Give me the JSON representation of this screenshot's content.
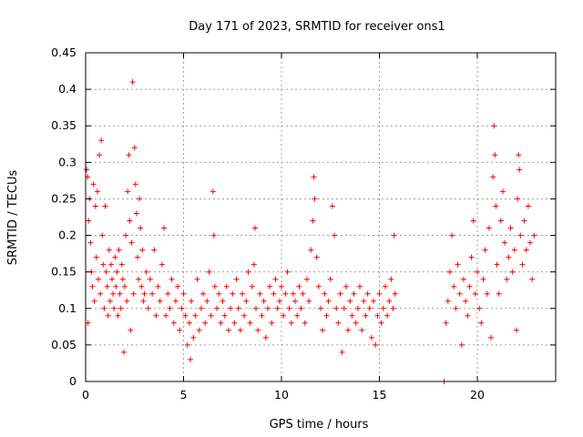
{
  "chart_data": {
    "type": "scatter",
    "title": "Day 171 of 2023, SRMTID for receiver ons1",
    "xlabel": "GPS time / hours",
    "ylabel": "SRMTID / TECUs",
    "xlim": [
      0,
      24
    ],
    "ylim": [
      0,
      0.45
    ],
    "xticks": [
      0,
      5,
      10,
      15,
      20
    ],
    "xtick_labels": [
      "0",
      "5",
      "10",
      "15",
      "20"
    ],
    "yticks": [
      0,
      0.05,
      0.1,
      0.15,
      0.2,
      0.25,
      0.3,
      0.35,
      0.4,
      0.45
    ],
    "ytick_labels": [
      "0",
      "0.05",
      "0.1",
      "0.15",
      "0.2",
      "0.25",
      "0.3",
      "0.35",
      "0.4",
      "0.45"
    ],
    "grid": true,
    "marker": "+",
    "color": "#ff0000",
    "series": [
      {
        "name": "SRMTID",
        "points": [
          [
            0.05,
            0.29
          ],
          [
            0.1,
            0.28
          ],
          [
            0.12,
            0.08
          ],
          [
            0.15,
            0.22
          ],
          [
            0.2,
            0.25
          ],
          [
            0.25,
            0.19
          ],
          [
            0.3,
            0.15
          ],
          [
            0.35,
            0.13
          ],
          [
            0.4,
            0.27
          ],
          [
            0.45,
            0.11
          ],
          [
            0.5,
            0.24
          ],
          [
            0.55,
            0.17
          ],
          [
            0.6,
            0.26
          ],
          [
            0.65,
            0.14
          ],
          [
            0.7,
            0.31
          ],
          [
            0.75,
            0.12
          ],
          [
            0.8,
            0.33
          ],
          [
            0.85,
            0.2
          ],
          [
            0.9,
            0.16
          ],
          [
            0.95,
            0.1
          ],
          [
            1.0,
            0.24
          ],
          [
            1.05,
            0.15
          ],
          [
            1.1,
            0.13
          ],
          [
            1.15,
            0.09
          ],
          [
            1.2,
            0.18
          ],
          [
            1.25,
            0.11
          ],
          [
            1.3,
            0.16
          ],
          [
            1.35,
            0.14
          ],
          [
            1.4,
            0.12
          ],
          [
            1.45,
            0.1
          ],
          [
            1.5,
            0.17
          ],
          [
            1.55,
            0.13
          ],
          [
            1.6,
            0.15
          ],
          [
            1.65,
            0.09
          ],
          [
            1.7,
            0.18
          ],
          [
            1.75,
            0.12
          ],
          [
            1.8,
            0.1
          ],
          [
            1.85,
            0.16
          ],
          [
            1.9,
            0.14
          ],
          [
            1.95,
            0.04
          ],
          [
            2.0,
            0.13
          ],
          [
            2.05,
            0.2
          ],
          [
            2.1,
            0.11
          ],
          [
            2.15,
            0.26
          ],
          [
            2.2,
            0.31
          ],
          [
            2.25,
            0.22
          ],
          [
            2.3,
            0.07
          ],
          [
            2.35,
            0.19
          ],
          [
            2.4,
            0.41
          ],
          [
            2.45,
            0.12
          ],
          [
            2.5,
            0.32
          ],
          [
            2.55,
            0.27
          ],
          [
            2.6,
            0.23
          ],
          [
            2.65,
            0.17
          ],
          [
            2.7,
            0.14
          ],
          [
            2.75,
            0.25
          ],
          [
            2.8,
            0.21
          ],
          [
            2.85,
            0.13
          ],
          [
            2.9,
            0.18
          ],
          [
            2.95,
            0.11
          ],
          [
            3.0,
            0.12
          ],
          [
            3.1,
            0.15
          ],
          [
            3.2,
            0.1
          ],
          [
            3.3,
            0.14
          ],
          [
            3.4,
            0.12
          ],
          [
            3.5,
            0.18
          ],
          [
            3.6,
            0.09
          ],
          [
            3.7,
            0.13
          ],
          [
            3.8,
            0.11
          ],
          [
            3.9,
            0.16
          ],
          [
            4.0,
            0.21
          ],
          [
            4.1,
            0.09
          ],
          [
            4.2,
            0.12
          ],
          [
            4.3,
            0.1
          ],
          [
            4.4,
            0.14
          ],
          [
            4.5,
            0.08
          ],
          [
            4.6,
            0.11
          ],
          [
            4.7,
            0.13
          ],
          [
            4.8,
            0.07
          ],
          [
            4.9,
            0.1
          ],
          [
            5.0,
            0.12
          ],
          [
            5.1,
            0.09
          ],
          [
            5.2,
            0.05
          ],
          [
            5.3,
            0.08
          ],
          [
            5.35,
            0.03
          ],
          [
            5.4,
            0.11
          ],
          [
            5.5,
            0.06
          ],
          [
            5.6,
            0.09
          ],
          [
            5.7,
            0.14
          ],
          [
            5.8,
            0.07
          ],
          [
            5.9,
            0.1
          ],
          [
            6.0,
            0.12
          ],
          [
            6.1,
            0.08
          ],
          [
            6.2,
            0.11
          ],
          [
            6.3,
            0.15
          ],
          [
            6.4,
            0.09
          ],
          [
            6.5,
            0.26
          ],
          [
            6.55,
            0.2
          ],
          [
            6.6,
            0.13
          ],
          [
            6.7,
            0.1
          ],
          [
            6.8,
            0.12
          ],
          [
            6.9,
            0.08
          ],
          [
            7.0,
            0.11
          ],
          [
            7.1,
            0.09
          ],
          [
            7.2,
            0.13
          ],
          [
            7.3,
            0.07
          ],
          [
            7.4,
            0.1
          ],
          [
            7.5,
            0.12
          ],
          [
            7.6,
            0.08
          ],
          [
            7.7,
            0.14
          ],
          [
            7.8,
            0.1
          ],
          [
            7.9,
            0.07
          ],
          [
            8.0,
            0.12
          ],
          [
            8.1,
            0.09
          ],
          [
            8.2,
            0.11
          ],
          [
            8.3,
            0.15
          ],
          [
            8.4,
            0.08
          ],
          [
            8.5,
            0.13
          ],
          [
            8.6,
            0.16
          ],
          [
            8.65,
            0.21
          ],
          [
            8.7,
            0.1
          ],
          [
            8.8,
            0.07
          ],
          [
            8.9,
            0.12
          ],
          [
            9.0,
            0.09
          ],
          [
            9.1,
            0.11
          ],
          [
            9.2,
            0.06
          ],
          [
            9.3,
            0.1
          ],
          [
            9.4,
            0.13
          ],
          [
            9.5,
            0.08
          ],
          [
            9.6,
            0.12
          ],
          [
            9.7,
            0.14
          ],
          [
            9.8,
            0.1
          ],
          [
            9.9,
            0.11
          ],
          [
            10.0,
            0.13
          ],
          [
            10.1,
            0.09
          ],
          [
            10.2,
            0.12
          ],
          [
            10.3,
            0.15
          ],
          [
            10.4,
            0.1
          ],
          [
            10.5,
            0.08
          ],
          [
            10.6,
            0.12
          ],
          [
            10.7,
            0.11
          ],
          [
            10.8,
            0.09
          ],
          [
            10.9,
            0.13
          ],
          [
            11.0,
            0.1
          ],
          [
            11.1,
            0.12
          ],
          [
            11.2,
            0.08
          ],
          [
            11.3,
            0.14
          ],
          [
            11.4,
            0.11
          ],
          [
            11.5,
            0.18
          ],
          [
            11.6,
            0.22
          ],
          [
            11.65,
            0.28
          ],
          [
            11.7,
            0.25
          ],
          [
            11.8,
            0.17
          ],
          [
            11.9,
            0.13
          ],
          [
            12.0,
            0.1
          ],
          [
            12.1,
            0.07
          ],
          [
            12.2,
            0.12
          ],
          [
            12.3,
            0.09
          ],
          [
            12.4,
            0.11
          ],
          [
            12.5,
            0.14
          ],
          [
            12.6,
            0.24
          ],
          [
            12.7,
            0.2
          ],
          [
            12.8,
            0.1
          ],
          [
            12.9,
            0.08
          ],
          [
            13.0,
            0.12
          ],
          [
            13.1,
            0.04
          ],
          [
            13.2,
            0.1
          ],
          [
            13.3,
            0.13
          ],
          [
            13.4,
            0.07
          ],
          [
            13.5,
            0.11
          ],
          [
            13.6,
            0.09
          ],
          [
            13.7,
            0.12
          ],
          [
            13.8,
            0.08
          ],
          [
            13.9,
            0.1
          ],
          [
            14.0,
            0.13
          ],
          [
            14.1,
            0.07
          ],
          [
            14.2,
            0.11
          ],
          [
            14.3,
            0.09
          ],
          [
            14.4,
            0.12
          ],
          [
            14.5,
            0.1
          ],
          [
            14.6,
            0.06
          ],
          [
            14.7,
            0.11
          ],
          [
            14.8,
            0.05
          ],
          [
            14.9,
            0.09
          ],
          [
            15.0,
            0.12
          ],
          [
            15.1,
            0.08
          ],
          [
            15.2,
            0.1
          ],
          [
            15.3,
            0.13
          ],
          [
            15.4,
            0.09
          ],
          [
            15.5,
            0.11
          ],
          [
            15.6,
            0.14
          ],
          [
            15.7,
            0.1
          ],
          [
            15.75,
            0.2
          ],
          [
            15.8,
            0.12
          ],
          [
            18.3,
            0.0
          ],
          [
            18.4,
            0.08
          ],
          [
            18.5,
            0.11
          ],
          [
            18.6,
            0.15
          ],
          [
            18.7,
            0.2
          ],
          [
            18.8,
            0.13
          ],
          [
            18.9,
            0.1
          ],
          [
            19.0,
            0.16
          ],
          [
            19.1,
            0.12
          ],
          [
            19.2,
            0.05
          ],
          [
            19.3,
            0.14
          ],
          [
            19.4,
            0.11
          ],
          [
            19.5,
            0.09
          ],
          [
            19.6,
            0.13
          ],
          [
            19.7,
            0.17
          ],
          [
            19.8,
            0.22
          ],
          [
            19.9,
            0.12
          ],
          [
            20.0,
            0.15
          ],
          [
            20.1,
            0.1
          ],
          [
            20.2,
            0.08
          ],
          [
            20.3,
            0.14
          ],
          [
            20.4,
            0.18
          ],
          [
            20.5,
            0.12
          ],
          [
            20.6,
            0.21
          ],
          [
            20.7,
            0.06
          ],
          [
            20.8,
            0.28
          ],
          [
            20.85,
            0.35
          ],
          [
            20.9,
            0.31
          ],
          [
            20.95,
            0.24
          ],
          [
            21.0,
            0.16
          ],
          [
            21.1,
            0.12
          ],
          [
            21.2,
            0.22
          ],
          [
            21.3,
            0.26
          ],
          [
            21.4,
            0.19
          ],
          [
            21.5,
            0.14
          ],
          [
            21.6,
            0.17
          ],
          [
            21.7,
            0.21
          ],
          [
            21.8,
            0.15
          ],
          [
            21.9,
            0.18
          ],
          [
            22.0,
            0.07
          ],
          [
            22.05,
            0.25
          ],
          [
            22.1,
            0.31
          ],
          [
            22.15,
            0.29
          ],
          [
            22.2,
            0.2
          ],
          [
            22.3,
            0.16
          ],
          [
            22.4,
            0.22
          ],
          [
            22.5,
            0.18
          ],
          [
            22.6,
            0.24
          ],
          [
            22.7,
            0.19
          ],
          [
            22.8,
            0.14
          ],
          [
            22.9,
            0.2
          ]
        ]
      }
    ]
  }
}
